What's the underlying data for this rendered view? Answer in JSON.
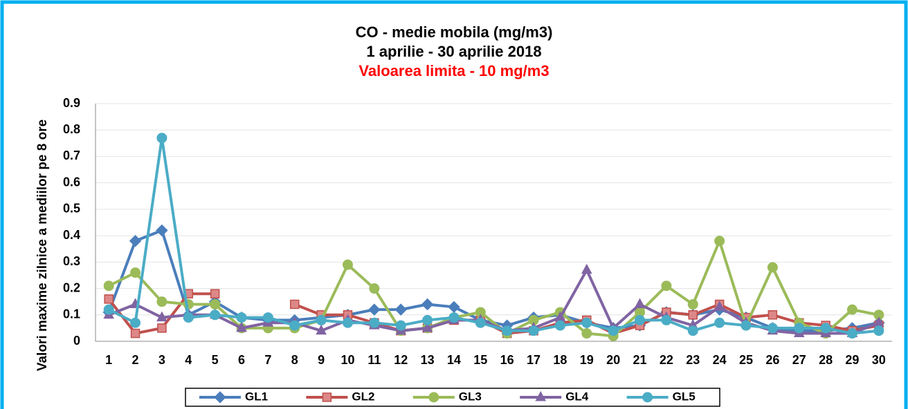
{
  "chart_data": {
    "type": "line",
    "title": "CO - medie mobila (mg/m3)",
    "subtitle": "1 aprilie - 30 aprilie 2018",
    "annotation": "Valoarea limita - 10 mg/m3",
    "y_label": "Valori maxime zilnice a mediilor pe 8 ore",
    "categories": [
      "1",
      "2",
      "3",
      "4",
      "5",
      "6",
      "7",
      "8",
      "9",
      "10",
      "11",
      "12",
      "13",
      "14",
      "15",
      "16",
      "17",
      "18",
      "19",
      "20",
      "21",
      "22",
      "23",
      "24",
      "25",
      "26",
      "27",
      "28",
      "29",
      "30"
    ],
    "ylim": [
      0,
      0.9
    ],
    "yticks": [
      0,
      0.1,
      0.2,
      0.3,
      0.4,
      0.5,
      0.6,
      0.7,
      0.8,
      0.9
    ],
    "grid": true,
    "legend": "bottom",
    "series": [
      {
        "name": "GL1",
        "color": "#4a7ebb",
        "marker": "diamond",
        "values": [
          0.11,
          0.38,
          0.42,
          0.1,
          0.15,
          0.09,
          0.08,
          0.08,
          0.09,
          0.1,
          0.12,
          0.12,
          0.14,
          0.13,
          0.08,
          0.06,
          0.09,
          0.1,
          0.07,
          0.05,
          0.06,
          0.11,
          0.1,
          0.12,
          0.09,
          0.05,
          0.04,
          0.04,
          0.05,
          0.07
        ]
      },
      {
        "name": "GL2",
        "color": "#c0504d",
        "marker": "square",
        "values": [
          0.16,
          0.03,
          0.05,
          0.18,
          0.18,
          null,
          null,
          0.14,
          0.1,
          0.1,
          0.07,
          0.04,
          0.05,
          0.08,
          0.08,
          0.03,
          0.04,
          0.07,
          0.08,
          0.03,
          0.06,
          0.11,
          0.1,
          0.14,
          0.09,
          0.1,
          0.07,
          0.06,
          0.04,
          0.06
        ]
      },
      {
        "name": "GL3",
        "color": "#9bbb59",
        "marker": "circle",
        "values": [
          0.21,
          0.26,
          0.15,
          0.14,
          0.14,
          0.05,
          0.05,
          0.05,
          0.08,
          0.29,
          0.2,
          0.04,
          0.05,
          0.09,
          0.11,
          0.03,
          0.08,
          0.11,
          0.03,
          0.02,
          0.11,
          0.21,
          0.14,
          0.38,
          0.06,
          0.28,
          0.07,
          0.03,
          0.12,
          0.1
        ]
      },
      {
        "name": "GL4",
        "color": "#8064a2",
        "marker": "triangle",
        "values": [
          0.1,
          0.14,
          0.09,
          0.1,
          0.1,
          0.05,
          0.07,
          0.07,
          0.04,
          0.08,
          0.06,
          0.04,
          0.05,
          0.08,
          0.08,
          0.04,
          0.05,
          0.09,
          0.27,
          0.05,
          0.14,
          0.09,
          0.06,
          0.13,
          0.07,
          0.04,
          0.03,
          0.03,
          0.03,
          0.07
        ]
      },
      {
        "name": "GL5",
        "color": "#4bacc6",
        "marker": "circle",
        "values": [
          0.12,
          0.07,
          0.77,
          0.09,
          0.1,
          0.09,
          0.09,
          0.06,
          0.08,
          0.07,
          0.07,
          0.06,
          0.08,
          0.09,
          0.07,
          0.04,
          0.04,
          0.06,
          0.07,
          0.04,
          0.08,
          0.08,
          0.04,
          0.07,
          0.06,
          0.05,
          0.05,
          0.05,
          0.03,
          0.04
        ]
      }
    ]
  }
}
